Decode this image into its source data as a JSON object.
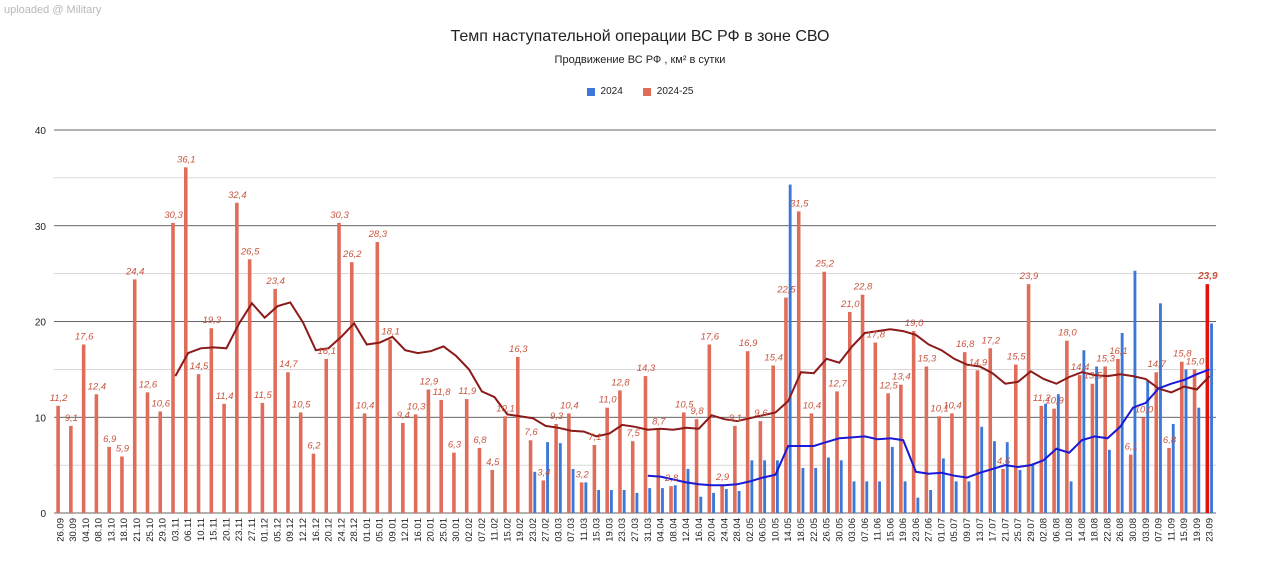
{
  "watermark": "uploaded @ Military",
  "chart_data": {
    "type": "bar",
    "title": "Темп наступательной операции ВС РФ в зоне СВО",
    "subtitle": "Продвижение ВС РФ , км² в сутки",
    "ylim": [
      0,
      40
    ],
    "yticks": [
      0,
      10,
      20,
      30,
      40
    ],
    "grid": true,
    "legend_position": "top-center",
    "colors": {
      "series_2024": "#3c78d8",
      "series_2024_25": "#e06c5a",
      "trend_2024": "#1a1ad6",
      "trend_2024_25": "#8b1a1a",
      "last_bar": "#e3120b",
      "label": "#c8553f"
    },
    "categories": [
      "26.09",
      "30.09",
      "04.10",
      "08.10",
      "13.10",
      "18.10",
      "21.10",
      "25.10",
      "29.10",
      "03.11",
      "06.11",
      "10.11",
      "15.11",
      "20.11",
      "23.11",
      "27.11",
      "01.12",
      "05.12",
      "09.12",
      "12.12",
      "16.12",
      "20.12",
      "24.12",
      "28.12",
      "01.01",
      "05.01",
      "09.01",
      "12.01",
      "16.01",
      "20.01",
      "25.01",
      "30.01",
      "02.02",
      "07.02",
      "11.02",
      "15.02",
      "19.02",
      "23.02",
      "27.02",
      "03.03",
      "07.03",
      "11.03",
      "15.03",
      "19.03",
      "23.03",
      "27.03",
      "31.03",
      "04.04",
      "08.04",
      "12.04",
      "16.04",
      "20.04",
      "24.04",
      "28.04",
      "02.05",
      "06.05",
      "10.05",
      "14.05",
      "18.05",
      "22.05",
      "26.05",
      "30.05",
      "03.06",
      "07.06",
      "11.06",
      "15.06",
      "19.06",
      "23.06",
      "27.06",
      "01.07",
      "05.07",
      "09.07",
      "13.07",
      "17.07",
      "21.07",
      "25.07",
      "29.07",
      "02.08",
      "06.08",
      "10.08",
      "14.08",
      "18.08",
      "22.08",
      "26.08",
      "30.08",
      "03.09",
      "07.09",
      "11.09",
      "15.09",
      "19.09",
      "23.09"
    ],
    "series": [
      {
        "name": "2024",
        "values": [
          null,
          null,
          null,
          null,
          null,
          null,
          null,
          null,
          null,
          null,
          null,
          null,
          null,
          null,
          null,
          null,
          null,
          null,
          null,
          null,
          null,
          null,
          null,
          null,
          null,
          null,
          null,
          null,
          null,
          null,
          null,
          null,
          null,
          null,
          null,
          null,
          null,
          4.3,
          7.4,
          7.3,
          4.6,
          3.2,
          2.4,
          2.4,
          2.4,
          2.1,
          2.6,
          2.6,
          2.9,
          4.6,
          1.7,
          2.1,
          2.5,
          2.3,
          5.5,
          5.5,
          5.5,
          34.3,
          4.7,
          4.7,
          5.8,
          5.5,
          3.3,
          3.3,
          3.3,
          6.9,
          3.3,
          1.6,
          2.4,
          5.7,
          3.3,
          3.3,
          9.0,
          7.5,
          7.4,
          4.5,
          5.1,
          11.4,
          12.4,
          3.3,
          17.0,
          15.3,
          6.6,
          18.8,
          25.3,
          13.8,
          21.9,
          9.3,
          15.0,
          11.0,
          19.8
        ]
      },
      {
        "name": "2024-25",
        "values": [
          11.2,
          9.1,
          17.6,
          12.4,
          6.9,
          5.9,
          24.4,
          12.6,
          10.6,
          30.3,
          36.1,
          14.5,
          19.3,
          11.4,
          32.4,
          26.5,
          11.5,
          23.4,
          14.7,
          10.5,
          6.2,
          16.1,
          30.3,
          26.2,
          10.4,
          28.3,
          18.1,
          9.4,
          10.3,
          12.9,
          11.8,
          6.3,
          11.9,
          6.8,
          4.5,
          10.1,
          16.3,
          7.6,
          3.4,
          9.3,
          10.4,
          3.2,
          7.1,
          11.0,
          12.8,
          7.5,
          14.3,
          8.7,
          2.8,
          10.5,
          9.8,
          17.6,
          2.9,
          9.1,
          16.9,
          9.6,
          15.4,
          22.5,
          31.5,
          10.4,
          25.2,
          12.7,
          21.0,
          22.8,
          17.8,
          12.5,
          13.4,
          19.0,
          15.3,
          10.1,
          10.4,
          16.8,
          14.9,
          17.2,
          4.6,
          15.5,
          23.9,
          11.2,
          10.9,
          18.0,
          14.4,
          13.5,
          15.3,
          16.1,
          6.1,
          10.0,
          14.7,
          6.8,
          15.8,
          15.0,
          23.9
        ]
      },
      {
        "name": "trend 2024",
        "values": [
          null,
          null,
          null,
          null,
          null,
          null,
          null,
          null,
          null,
          null,
          null,
          null,
          null,
          null,
          null,
          null,
          null,
          null,
          null,
          null,
          null,
          null,
          null,
          null,
          null,
          null,
          null,
          null,
          null,
          null,
          null,
          null,
          null,
          null,
          null,
          null,
          null,
          null,
          null,
          null,
          null,
          null,
          null,
          null,
          null,
          null,
          3.9,
          3.8,
          3.5,
          3.2,
          3.0,
          2.9,
          2.9,
          3.0,
          3.3,
          3.7,
          4.0,
          7.0,
          7.0,
          7.0,
          7.4,
          7.8,
          7.9,
          8.0,
          7.7,
          7.8,
          7.6,
          4.3,
          4.1,
          4.2,
          3.9,
          3.7,
          4.2,
          4.6,
          5.0,
          4.8,
          5.0,
          5.5,
          6.7,
          6.3,
          7.6,
          8.0,
          7.8,
          9.0,
          11.0,
          11.5,
          13.0,
          13.5,
          13.9,
          14.5,
          15.0
        ]
      },
      {
        "name": "trend 2024-25",
        "values": [
          null,
          null,
          null,
          null,
          null,
          null,
          null,
          null,
          null,
          14.3,
          16.7,
          17.2,
          17.3,
          17.2,
          19.8,
          21.9,
          20.4,
          21.6,
          22.0,
          19.9,
          17.0,
          17.2,
          18.4,
          19.8,
          17.6,
          17.8,
          18.4,
          17.0,
          16.7,
          16.9,
          17.4,
          16.4,
          15.0,
          12.7,
          12.1,
          10.3,
          10.1,
          9.9,
          9.1,
          8.9,
          8.6,
          8.5,
          8.0,
          8.3,
          9.2,
          9.0,
          8.7,
          8.8,
          8.7,
          8.9,
          8.8,
          10.2,
          9.8,
          9.6,
          9.9,
          10.2,
          10.5,
          11.7,
          14.7,
          14.6,
          16.1,
          15.7,
          17.4,
          18.8,
          19.0,
          19.2,
          19.0,
          18.6,
          17.6,
          17.0,
          16.1,
          15.5,
          15.3,
          14.6,
          13.5,
          13.7,
          14.8,
          14.0,
          13.5,
          14.2,
          14.7,
          14.4,
          14.3,
          14.5,
          14.3,
          14.0,
          13.0,
          12.6,
          13.2,
          12.9,
          14.3
        ]
      }
    ],
    "value_labels": [
      "11,2",
      "9,1",
      "17,6",
      "12,4",
      "6,9",
      "5,9",
      "24,4",
      "12,6",
      "10,6",
      "30,3",
      "36,1",
      "14,5",
      "19,3",
      "11,4",
      "32,4",
      "26,5",
      "11,5",
      "23,4",
      "14,7",
      "10,5",
      "6,2",
      "16,1",
      "30,3",
      "26,2",
      "10,4",
      "28,3",
      "18,1",
      "9,4",
      "10,3",
      "12,9",
      "11,8",
      "6,3",
      "11,9",
      "6,8",
      "4,5",
      "10,1",
      "16,3",
      "7,6",
      "3,4",
      "9,3",
      "10,4",
      "3,2",
      "7,1",
      "11,0",
      "12,8",
      "7,5",
      "14,3",
      "8,7",
      "2,8",
      "10,5",
      "9,8",
      "17,6",
      "2,9",
      "9,1",
      "16,9",
      "9,6",
      "15,4",
      "22,5",
      "31,5",
      "10,4",
      "25,2",
      "12,7",
      "21,0",
      "22,8",
      "17,8",
      "12,5",
      "13,4",
      "19,0",
      "15,3",
      "10,1",
      "10,4",
      "16,8",
      "14,9",
      "17,2",
      "4,6",
      "15,5",
      "23,9",
      "11,2",
      "10,9",
      "18,0",
      "14,4",
      "13,5",
      "15,3",
      "16,1",
      "6,1",
      "10,0",
      "14,7",
      "6,8",
      "15,8",
      "15,0",
      "23,9"
    ]
  }
}
